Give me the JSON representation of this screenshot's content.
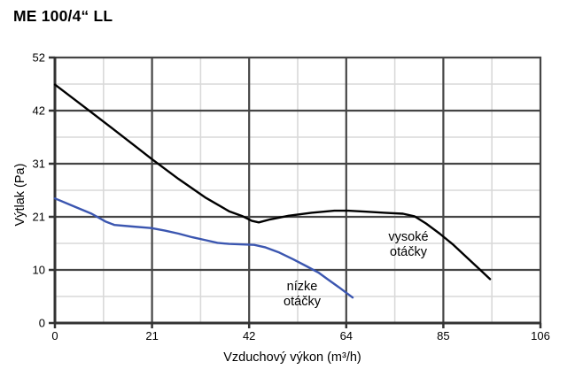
{
  "title": "ME 100/4“ LL",
  "chart_data": {
    "type": "line",
    "title": "ME 100/4“ LL",
    "xlabel": "Vzduchový výkon (m³/h)",
    "ylabel": "Výtlak (Pa)",
    "xlim": [
      0,
      106
    ],
    "ylim": [
      0,
      52
    ],
    "x_tick_labels": [
      "0",
      "21",
      "42",
      "64",
      "85",
      "106"
    ],
    "y_tick_labels": [
      "0",
      "10",
      "21",
      "31",
      "42",
      "52"
    ],
    "grid": "major dark lines at labeled ticks, light minor lines at midpoints",
    "legend_position": "inline annotations on plot",
    "colors": {
      "axis": "#333333",
      "major_grid": "#454545",
      "minor_grid": "#d9d9d9",
      "text": "#000000"
    },
    "series": [
      {
        "id": "vysoke-otacky",
        "name": "vysoké otáčky",
        "color": "#000000",
        "points": [
          [
            0,
            46.7
          ],
          [
            6,
            42.6
          ],
          [
            12,
            38.5
          ],
          [
            18,
            34.3
          ],
          [
            21,
            32.2
          ],
          [
            27,
            28.2
          ],
          [
            33,
            24.5
          ],
          [
            38,
            21.9
          ],
          [
            41,
            20.9
          ],
          [
            43,
            20.0
          ],
          [
            44.5,
            19.7
          ],
          [
            47,
            20.3
          ],
          [
            51,
            21.0
          ],
          [
            56,
            21.6
          ],
          [
            61,
            22.0
          ],
          [
            64,
            22.0
          ],
          [
            68,
            21.8
          ],
          [
            72,
            21.6
          ],
          [
            76,
            21.4
          ],
          [
            78.5,
            20.9
          ],
          [
            81,
            19.5
          ],
          [
            84,
            17.5
          ],
          [
            87,
            15.3
          ],
          [
            90,
            12.8
          ],
          [
            92.5,
            10.7
          ],
          [
            95,
            8.6
          ]
        ]
      },
      {
        "id": "nizke-otacky",
        "name": "nízke otáčky",
        "color": "#3b56b0",
        "points": [
          [
            0,
            24.4
          ],
          [
            4,
            22.9
          ],
          [
            8,
            21.4
          ],
          [
            11,
            19.9
          ],
          [
            13,
            19.2
          ],
          [
            17,
            18.9
          ],
          [
            21,
            18.6
          ],
          [
            24,
            18.1
          ],
          [
            27,
            17.5
          ],
          [
            30,
            16.8
          ],
          [
            33,
            16.2
          ],
          [
            35.5,
            15.7
          ],
          [
            38,
            15.5
          ],
          [
            41,
            15.4
          ],
          [
            43.5,
            15.3
          ],
          [
            46,
            14.8
          ],
          [
            49,
            13.8
          ],
          [
            52,
            12.5
          ],
          [
            55,
            11.1
          ],
          [
            57.5,
            9.9
          ],
          [
            59.5,
            8.6
          ],
          [
            62,
            7.0
          ],
          [
            65,
            5.0
          ]
        ]
      }
    ],
    "annotations": [
      {
        "text": "vysoké otáčky",
        "target_series": "vysoke-otacky"
      },
      {
        "text": "nízke otáčky",
        "target_series": "nizke-otacky"
      }
    ]
  }
}
